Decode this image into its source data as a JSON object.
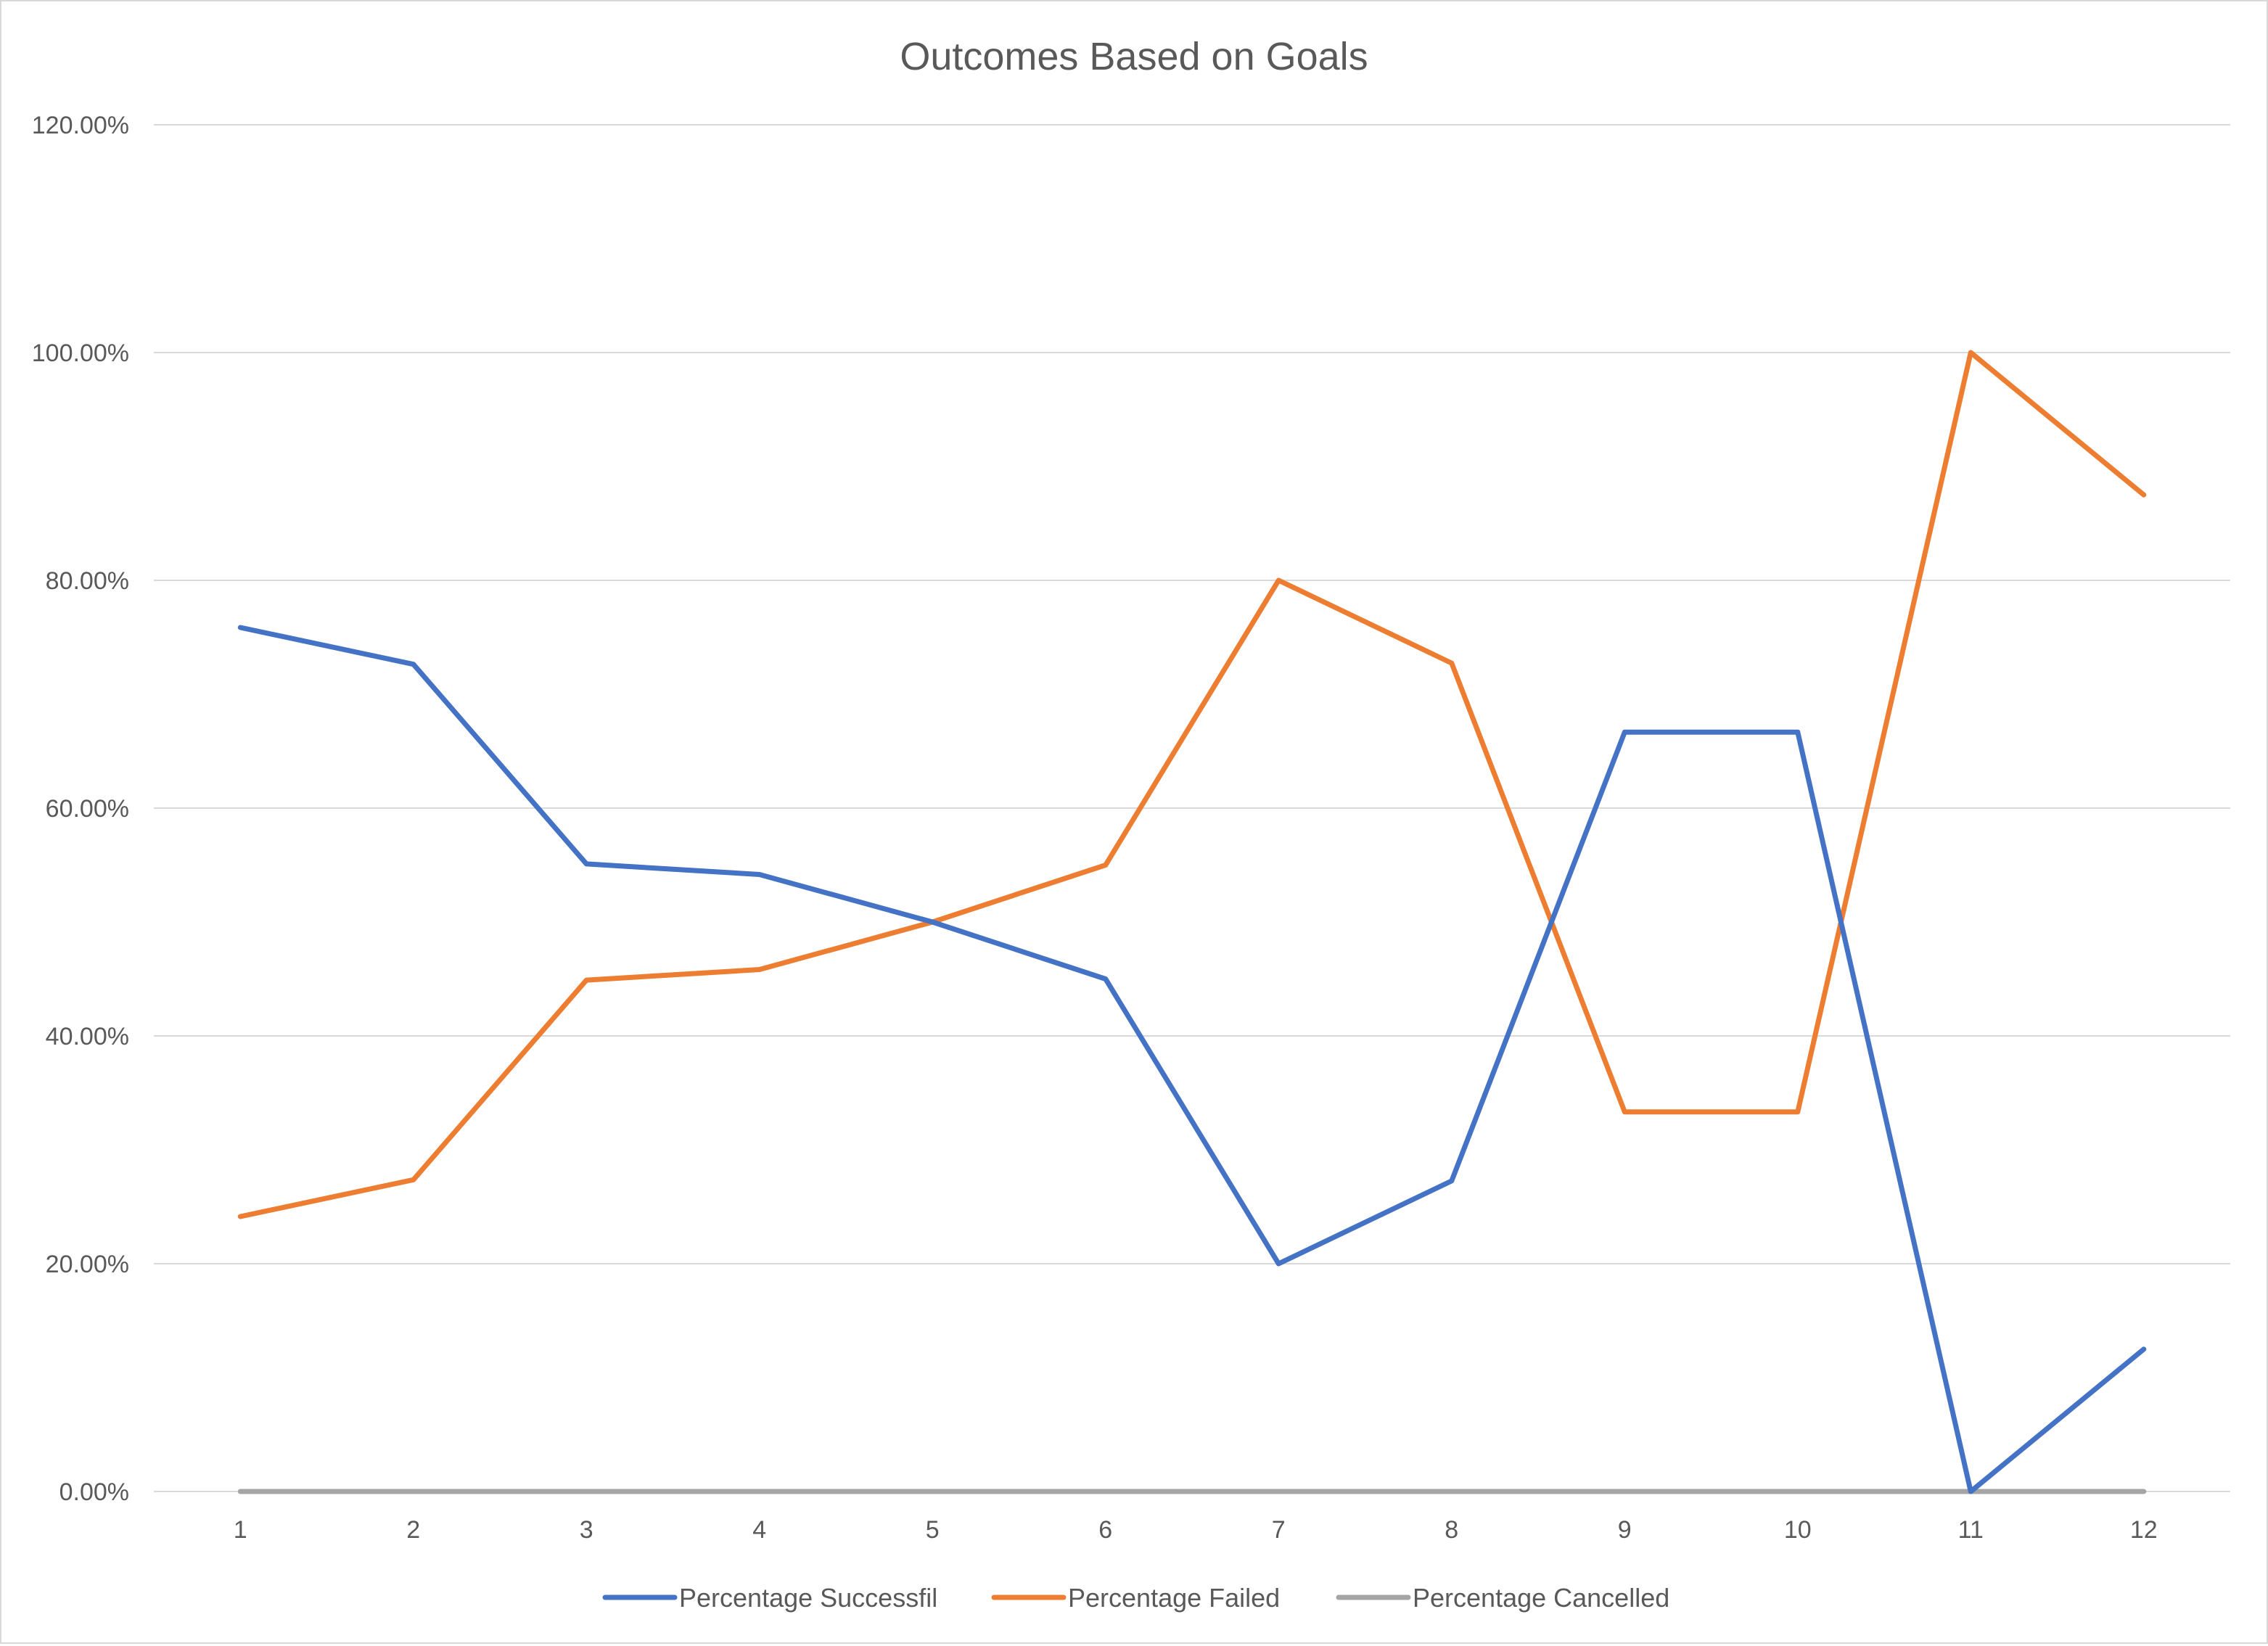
{
  "chart_data": {
    "type": "line",
    "title": "Outcomes Based on Goals",
    "xlabel": "",
    "ylabel": "",
    "categories": [
      "1",
      "2",
      "3",
      "4",
      "5",
      "6",
      "7",
      "8",
      "9",
      "10",
      "11",
      "12"
    ],
    "ylim": [
      0,
      1.2
    ],
    "y_ticks": [
      0,
      0.2,
      0.4,
      0.6,
      0.8,
      1.0,
      1.2
    ],
    "y_tick_labels": [
      "0.00%",
      "20.00%",
      "40.00%",
      "60.00%",
      "80.00%",
      "100.00%",
      "120.00%"
    ],
    "grid": true,
    "legend_position": "bottom",
    "series": [
      {
        "name": "Percentage Successfil",
        "color": "#4472c4",
        "values": [
          0.7586,
          0.7263,
          0.551,
          0.5417,
          0.5,
          0.45,
          0.2,
          0.2727,
          0.6667,
          0.6667,
          0.0,
          0.125
        ]
      },
      {
        "name": "Percentage Failed",
        "color": "#ed7d31",
        "values": [
          0.2414,
          0.2737,
          0.449,
          0.4583,
          0.5,
          0.55,
          0.8,
          0.7273,
          0.3333,
          0.3333,
          1.0,
          0.875
        ]
      },
      {
        "name": "Percentage Cancelled",
        "color": "#a5a5a5",
        "values": [
          0,
          0,
          0,
          0,
          0,
          0,
          0,
          0,
          0,
          0,
          0,
          0
        ]
      }
    ]
  }
}
